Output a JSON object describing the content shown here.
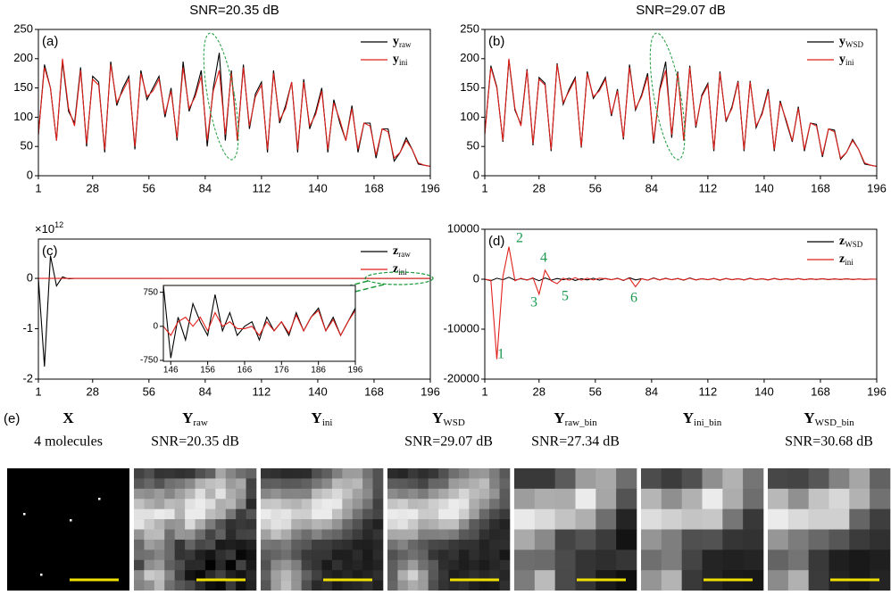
{
  "chart_data": [
    {
      "type": "line",
      "panel": "(a)",
      "title": "SNR=20.35 dB",
      "xlim": [
        1,
        196
      ],
      "xticks": [
        1,
        28,
        56,
        84,
        112,
        140,
        168,
        196
      ],
      "ylim": [
        0,
        250
      ],
      "yticks": [
        0,
        50,
        100,
        150,
        200,
        250
      ],
      "legend": "upper right",
      "x": [
        1,
        4,
        7,
        10,
        13,
        16,
        19,
        22,
        25,
        28,
        31,
        34,
        37,
        40,
        43,
        46,
        49,
        52,
        55,
        58,
        61,
        64,
        67,
        70,
        73,
        76,
        79,
        82,
        85,
        88,
        91,
        94,
        97,
        100,
        103,
        106,
        109,
        112,
        115,
        118,
        121,
        124,
        127,
        130,
        133,
        136,
        139,
        142,
        145,
        148,
        151,
        154,
        157,
        160,
        163,
        166,
        169,
        172,
        175,
        178,
        181,
        184,
        187,
        190,
        193,
        196
      ],
      "series": [
        {
          "name": "y",
          "subscript": "raw",
          "color": "#000000",
          "values": [
            70,
            190,
            150,
            60,
            195,
            110,
            90,
            185,
            50,
            170,
            160,
            40,
            195,
            120,
            150,
            170,
            45,
            180,
            130,
            150,
            170,
            100,
            150,
            60,
            195,
            110,
            140,
            180,
            50,
            150,
            210,
            60,
            180,
            60,
            190,
            80,
            140,
            160,
            40,
            180,
            90,
            120,
            160,
            40,
            165,
            80,
            110,
            150,
            40,
            130,
            90,
            60,
            120,
            40,
            90,
            90,
            30,
            80,
            80,
            25,
            40,
            65,
            45,
            20,
            18,
            16
          ]
        },
        {
          "name": "y",
          "subscript": "ini",
          "color": "#e0201b",
          "values": [
            70,
            185,
            150,
            60,
            200,
            115,
            85,
            180,
            55,
            165,
            155,
            45,
            190,
            125,
            145,
            165,
            50,
            175,
            135,
            145,
            165,
            105,
            145,
            65,
            185,
            115,
            135,
            170,
            60,
            145,
            180,
            70,
            175,
            60,
            185,
            85,
            135,
            155,
            45,
            175,
            95,
            115,
            160,
            45,
            160,
            85,
            105,
            145,
            45,
            125,
            95,
            60,
            115,
            45,
            90,
            85,
            35,
            80,
            75,
            30,
            40,
            60,
            45,
            22,
            18,
            16
          ]
        }
      ]
    },
    {
      "type": "line",
      "panel": "(b)",
      "title": "SNR=29.07 dB",
      "xlim": [
        1,
        196
      ],
      "xticks": [
        1,
        28,
        56,
        84,
        112,
        140,
        168,
        196
      ],
      "ylim": [
        0,
        250
      ],
      "yticks": [
        0,
        50,
        100,
        150,
        200,
        250
      ],
      "legend": "upper right",
      "x": [
        1,
        4,
        7,
        10,
        13,
        16,
        19,
        22,
        25,
        28,
        31,
        34,
        37,
        40,
        43,
        46,
        49,
        52,
        55,
        58,
        61,
        64,
        67,
        70,
        73,
        76,
        79,
        82,
        85,
        88,
        91,
        94,
        97,
        100,
        103,
        106,
        109,
        112,
        115,
        118,
        121,
        124,
        127,
        130,
        133,
        136,
        139,
        142,
        145,
        148,
        151,
        154,
        157,
        160,
        163,
        166,
        169,
        172,
        175,
        178,
        181,
        184,
        187,
        190,
        193,
        196
      ],
      "series": [
        {
          "name": "y",
          "subscript": "WSD",
          "color": "#000000",
          "values": [
            72,
            188,
            152,
            58,
            198,
            112,
            88,
            182,
            52,
            168,
            158,
            42,
            192,
            122,
            148,
            168,
            48,
            178,
            132,
            148,
            168,
            102,
            148,
            62,
            190,
            112,
            138,
            175,
            55,
            148,
            195,
            65,
            178,
            60,
            188,
            82,
            138,
            158,
            42,
            178,
            92,
            118,
            162,
            42,
            162,
            82,
            108,
            148,
            42,
            128,
            92,
            58,
            118,
            42,
            90,
            88,
            32,
            80,
            78,
            28,
            40,
            62,
            45,
            20,
            18,
            16
          ]
        },
        {
          "name": "y",
          "subscript": "ini",
          "color": "#e0201b",
          "values": [
            70,
            185,
            150,
            60,
            200,
            115,
            85,
            180,
            55,
            165,
            155,
            45,
            190,
            125,
            145,
            165,
            50,
            175,
            135,
            145,
            165,
            105,
            145,
            65,
            185,
            115,
            135,
            170,
            60,
            145,
            180,
            70,
            175,
            60,
            185,
            85,
            135,
            155,
            45,
            175,
            95,
            115,
            160,
            45,
            160,
            85,
            105,
            145,
            45,
            125,
            95,
            60,
            115,
            45,
            90,
            85,
            35,
            80,
            75,
            30,
            40,
            60,
            45,
            22,
            18,
            16
          ]
        }
      ]
    },
    {
      "type": "line",
      "panel": "(c)",
      "y_scale_label": {
        "base": "×10",
        "exponent": "12"
      },
      "xlim": [
        1,
        196
      ],
      "xticks": [
        1,
        28,
        56,
        84,
        112,
        140,
        168,
        196
      ],
      "ylim": [
        -2,
        0.78
      ],
      "yticks": [
        -2,
        -1,
        0
      ],
      "legend": "upper right",
      "x": [
        1,
        4,
        7,
        10,
        13,
        16,
        19,
        22,
        28,
        56,
        84,
        112,
        140,
        168,
        196
      ],
      "series": [
        {
          "name": "z",
          "subscript": "raw",
          "color": "#000000",
          "values": [
            0,
            -1.75,
            0.45,
            -0.15,
            0.03,
            -0.01,
            0,
            0,
            0,
            0,
            0,
            0,
            0,
            0,
            0
          ]
        },
        {
          "name": "z",
          "subscript": "ini",
          "color": "#e0201b",
          "values": [
            0,
            0,
            0,
            0,
            0,
            0,
            0,
            0,
            0,
            0,
            0,
            0,
            0,
            0,
            0
          ]
        }
      ],
      "inset": {
        "xlim": [
          144,
          196
        ],
        "xticks": [
          146,
          156,
          166,
          176,
          186,
          196
        ],
        "ylim": [
          -770,
          900
        ],
        "yticks": [
          -750,
          0,
          750
        ],
        "x": [
          144,
          146,
          148,
          150,
          152,
          154,
          156,
          158,
          160,
          162,
          164,
          166,
          168,
          170,
          172,
          174,
          176,
          178,
          180,
          182,
          184,
          186,
          188,
          190,
          192,
          194,
          196
        ],
        "series": [
          {
            "color": "#000000",
            "values": [
              900,
              -700,
              200,
              -300,
              500,
              100,
              -200,
              700,
              -100,
              300,
              -200,
              0,
              100,
              -300,
              200,
              -100,
              100,
              -200,
              300,
              -100,
              200,
              400,
              -100,
              200,
              -200,
              100,
              400
            ]
          },
          {
            "color": "#e0201b",
            "values": [
              0,
              -200,
              100,
              200,
              0,
              200,
              -100,
              300,
              0,
              100,
              -50,
              -50,
              0,
              -200,
              100,
              -100,
              100,
              -150,
              250,
              -100,
              200,
              350,
              -100,
              150,
              -200,
              100,
              350
            ]
          }
        ]
      }
    },
    {
      "type": "line",
      "panel": "(d)",
      "xlim": [
        1,
        196
      ],
      "xticks": [
        1,
        28,
        56,
        84,
        112,
        140,
        168,
        196
      ],
      "ylim": [
        -20000,
        10000
      ],
      "yticks": [
        -20000,
        -10000,
        0,
        10000
      ],
      "legend": "upper right",
      "annotations": [
        "1",
        "2",
        "3",
        "4",
        "5",
        "6"
      ],
      "x": [
        1,
        4,
        7,
        10,
        13,
        16,
        19,
        22,
        25,
        28,
        31,
        34,
        37,
        40,
        43,
        46,
        49,
        52,
        55,
        58,
        61,
        64,
        67,
        70,
        73,
        76,
        79,
        82,
        85,
        88,
        91,
        94,
        97,
        100,
        103,
        106,
        109,
        112,
        115,
        118,
        121,
        124,
        127,
        130,
        133,
        136,
        139,
        142,
        145,
        148,
        151,
        154,
        157,
        160,
        163,
        166,
        169,
        172,
        175,
        178,
        181,
        184,
        187,
        190,
        193,
        196
      ],
      "series": [
        {
          "name": "z",
          "subscript": "WSD",
          "color": "#000000",
          "values": [
            0,
            -300,
            200,
            -100,
            400,
            -200,
            100,
            -150,
            200,
            -300,
            250,
            -200,
            150,
            -100,
            200,
            -250,
            100,
            -150,
            200,
            -200,
            150,
            -100,
            200,
            -250,
            300,
            -150,
            100,
            -200,
            250,
            -150,
            200,
            -100,
            150,
            -200,
            250,
            -150,
            100,
            -100,
            150,
            -200,
            150,
            -100,
            100,
            -150,
            200,
            -100,
            100,
            -150,
            150,
            -100,
            100,
            -80,
            120,
            -100,
            80,
            -60,
            100,
            -80,
            60,
            -50,
            80,
            -60,
            40,
            -30,
            20,
            0
          ]
        },
        {
          "name": "z",
          "subscript": "ini",
          "color": "#e0201b",
          "values": [
            0,
            -200,
            -16000,
            500,
            6500,
            -300,
            200,
            -200,
            300,
            -3000,
            1800,
            -300,
            -900,
            200,
            -200,
            300,
            -200,
            200,
            -150,
            200,
            100,
            -100,
            150,
            -200,
            200,
            -1500,
            100,
            -200,
            200,
            -150,
            150,
            -100,
            150,
            -150,
            200,
            -150,
            100,
            -100,
            150,
            -150,
            150,
            -100,
            100,
            -150,
            150,
            -100,
            100,
            -150,
            150,
            -100,
            100,
            -80,
            120,
            -100,
            80,
            -60,
            100,
            -80,
            60,
            -50,
            80,
            -60,
            40,
            -30,
            20,
            0
          ]
        }
      ]
    }
  ],
  "image_panel": {
    "label": "(e)",
    "images": [
      {
        "symbol": "X",
        "caption": "4 molecules"
      },
      {
        "symbol": "Y",
        "subscript": "raw",
        "caption": "SNR=20.35 dB"
      },
      {
        "symbol": "Y",
        "subscript": "ini"
      },
      {
        "symbol": "Y",
        "subscript": "WSD",
        "caption": "SNR=29.07 dB"
      },
      {
        "symbol": "Y",
        "subscript": "raw_bin",
        "caption": "SNR=27.34 dB"
      },
      {
        "symbol": "Y",
        "subscript": "ini_bin"
      },
      {
        "symbol": "Y",
        "subscript": "WSD_bin",
        "caption": "SNR=30.68 dB"
      }
    ]
  }
}
